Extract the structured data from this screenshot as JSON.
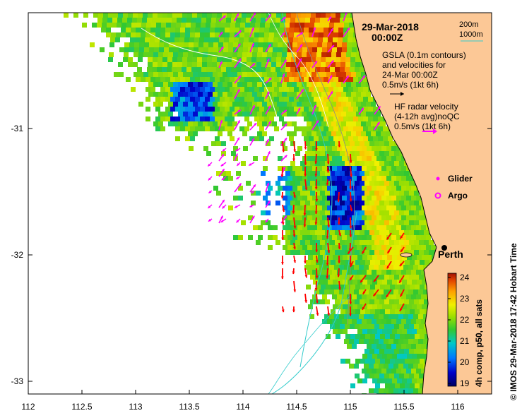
{
  "title": {
    "date": "29-Mar-2018",
    "time": "00:00Z"
  },
  "depth_legend": {
    "shallow": "200m",
    "deep": "1000m",
    "shallow_color": "#888888",
    "deep_color": "#33cccc"
  },
  "gsla_legend": {
    "line1": "GSLA (0.1m contours)",
    "line2": "and velocities for",
    "line3": "24-Mar 00:00Z",
    "line4": "0.5m/s (1kt 6h)"
  },
  "hf_legend": {
    "line1": "HF radar velocity",
    "line2": "(4-12h avg)noQC",
    "line3": "0.5m/s (1kt 6h)"
  },
  "symbols": {
    "glider": "Glider",
    "argo": "Argo",
    "glider_color": "#ff00ff",
    "argo_color": "#ff00ff"
  },
  "city": "Perth",
  "colorbar": {
    "label": "4h comp, p50, all sats",
    "ticks": [
      "24",
      "23",
      "22",
      "21",
      "20",
      "19"
    ]
  },
  "credit": "© IMOS 29-Mar-2018 17:42 Hobart Time",
  "axes": {
    "x_ticks": [
      "112",
      "112.5",
      "113",
      "113.5",
      "114",
      "114.5",
      "115",
      "115.5",
      "116"
    ],
    "y_ticks": [
      "-31",
      "-32",
      "-33"
    ]
  },
  "colors": {
    "land": "#fcc896",
    "altimetry_arrow": "#ff00ff",
    "radar_arrow": "#ff0000",
    "contour": "#ffffff"
  }
}
